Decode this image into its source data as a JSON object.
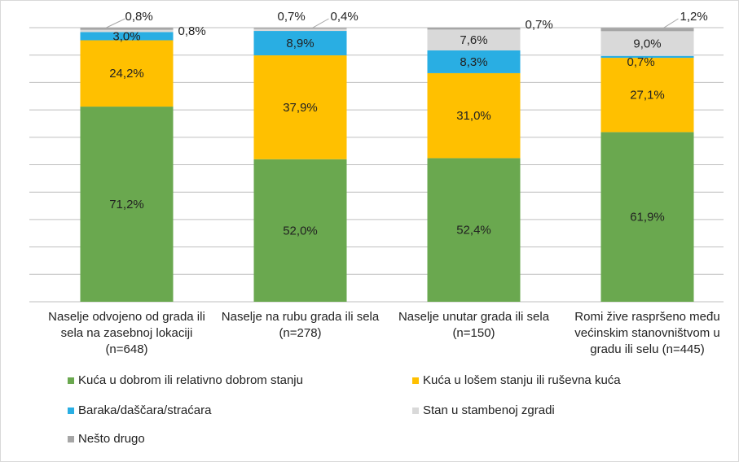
{
  "chart_data": {
    "type": "stacked_bar",
    "categories": [
      "Naselje odvojeno od grada ili sela na zasebnoj lokaciji (n=648)",
      "Naselje na rubu grada ili sela (n=278)",
      "Naselje unutar grada ili sela (n=150)",
      "Romi žive raspršeno među većinskim stanovništvom u gradu ili selu (n=445)"
    ],
    "series": [
      {
        "name": "Kuća u dobrom ili relativno dobrom stanju",
        "color": "#6aa84f",
        "values": [
          71.2,
          52.0,
          52.4,
          61.9
        ],
        "value_labels": [
          "71,2%",
          "52,0%",
          "52,4%",
          "61,9%"
        ]
      },
      {
        "name": "Kuća u lošem stanju ili ruševna kuća",
        "color": "#ffc000",
        "values": [
          24.2,
          37.9,
          31.0,
          27.1
        ],
        "value_labels": [
          "24,2%",
          "37,9%",
          "31,0%",
          "27,1%"
        ]
      },
      {
        "name": "Baraka/daščara/straćara",
        "color": "#29aee3",
        "values": [
          3.0,
          8.9,
          8.3,
          0.7
        ],
        "value_labels": [
          "3,0%",
          "8,9%",
          "8,3%",
          "0,7%"
        ]
      },
      {
        "name": "Stan u stambenoj zgradi",
        "color": "#d9d9d9",
        "values": [
          0.8,
          0.7,
          7.6,
          9.0
        ],
        "value_labels": [
          "0,8%",
          "0,7%",
          "7,6%",
          "9,0%"
        ]
      },
      {
        "name": "Nešto drugo",
        "color": "#a6a6a6",
        "values": [
          0.8,
          0.4,
          0.7,
          1.2
        ],
        "value_labels": [
          "0,8%",
          "0,4%",
          "0,7%",
          "1,2%"
        ]
      }
    ],
    "ylim": [
      0,
      100
    ],
    "yticks": [
      0,
      10,
      20,
      30,
      40,
      50,
      60,
      70,
      80,
      90,
      100
    ],
    "grid": true
  }
}
